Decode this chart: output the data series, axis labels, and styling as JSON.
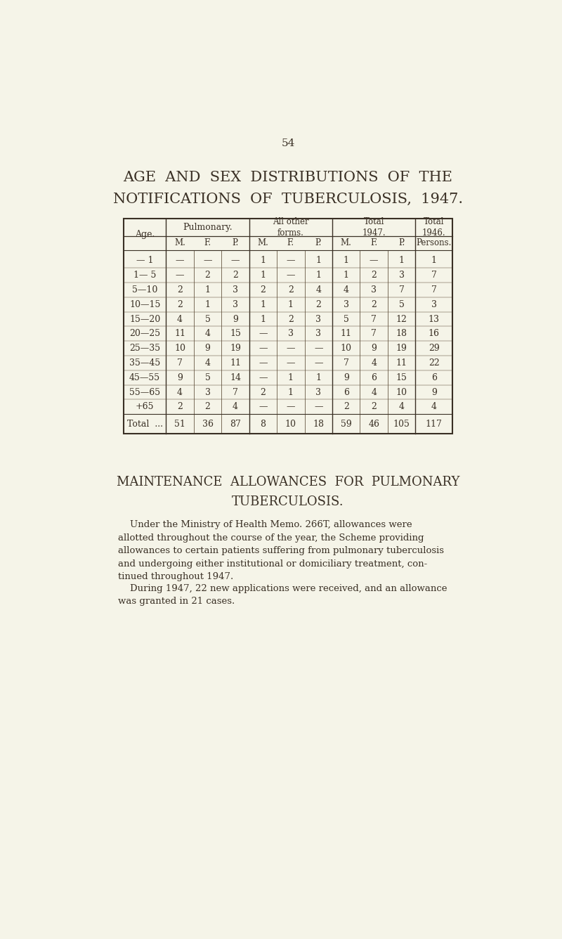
{
  "background_color": "#f5f4e8",
  "page_number": "54",
  "title_line1": "AGE  AND  SEX  DISTRIBUTIONS  OF  THE",
  "title_line2": "NOTIFICATIONS  OF  TUBERCULOSIS,  1947.",
  "table": {
    "age_col_header": "Age.",
    "rows": [
      {
        "age": "— 1",
        "pul_m": "—",
        "pul_f": "—",
        "pul_p": "—",
        "oth_m": "1",
        "oth_f": "—",
        "oth_p": "1",
        "tot47_m": "1",
        "tot47_f": "—",
        "tot47_p": "1",
        "tot46": "1"
      },
      {
        "age": "1— 5",
        "pul_m": "—",
        "pul_f": "2",
        "pul_p": "2",
        "oth_m": "1",
        "oth_f": "—",
        "oth_p": "1",
        "tot47_m": "1",
        "tot47_f": "2",
        "tot47_p": "3",
        "tot46": "7"
      },
      {
        "age": "5—10",
        "pul_m": "2",
        "pul_f": "1",
        "pul_p": "3",
        "oth_m": "2",
        "oth_f": "2",
        "oth_p": "4",
        "tot47_m": "4",
        "tot47_f": "3",
        "tot47_p": "7",
        "tot46": "7"
      },
      {
        "age": "10—15",
        "pul_m": "2",
        "pul_f": "1",
        "pul_p": "3",
        "oth_m": "1",
        "oth_f": "1",
        "oth_p": "2",
        "tot47_m": "3",
        "tot47_f": "2",
        "tot47_p": "5",
        "tot46": "3"
      },
      {
        "age": "15—20",
        "pul_m": "4",
        "pul_f": "5",
        "pul_p": "9",
        "oth_m": "1",
        "oth_f": "2",
        "oth_p": "3",
        "tot47_m": "5",
        "tot47_f": "7",
        "tot47_p": "12",
        "tot46": "13"
      },
      {
        "age": "20—25",
        "pul_m": "11",
        "pul_f": "4",
        "pul_p": "15",
        "oth_m": "—",
        "oth_f": "3",
        "oth_p": "3",
        "tot47_m": "11",
        "tot47_f": "7",
        "tot47_p": "18",
        "tot46": "16"
      },
      {
        "age": "25—35",
        "pul_m": "10",
        "pul_f": "9",
        "pul_p": "19",
        "oth_m": "—",
        "oth_f": "—",
        "oth_p": "—",
        "tot47_m": "10",
        "tot47_f": "9",
        "tot47_p": "19",
        "tot46": "29"
      },
      {
        "age": "35—45",
        "pul_m": "7",
        "pul_f": "4",
        "pul_p": "11",
        "oth_m": "—",
        "oth_f": "—",
        "oth_p": "—",
        "tot47_m": "7",
        "tot47_f": "4",
        "tot47_p": "11",
        "tot46": "22"
      },
      {
        "age": "45—55",
        "pul_m": "9",
        "pul_f": "5",
        "pul_p": "14",
        "oth_m": "—",
        "oth_f": "1",
        "oth_p": "1",
        "tot47_m": "9",
        "tot47_f": "6",
        "tot47_p": "15",
        "tot46": "6"
      },
      {
        "age": "55—65",
        "pul_m": "4",
        "pul_f": "3",
        "pul_p": "7",
        "oth_m": "2",
        "oth_f": "1",
        "oth_p": "3",
        "tot47_m": "6",
        "tot47_f": "4",
        "tot47_p": "10",
        "tot46": "9"
      },
      {
        "age": "+65",
        "pul_m": "2",
        "pul_f": "2",
        "pul_p": "4",
        "oth_m": "—",
        "oth_f": "—",
        "oth_p": "—",
        "tot47_m": "2",
        "tot47_f": "2",
        "tot47_p": "4",
        "tot46": "4"
      }
    ],
    "total_row": {
      "age": "Total  ...",
      "pul_m": "51",
      "pul_f": "36",
      "pul_p": "87",
      "oth_m": "8",
      "oth_f": "10",
      "oth_p": "18",
      "tot47_m": "59",
      "tot47_f": "46",
      "tot47_p": "105",
      "tot46": "117"
    }
  },
  "section2_title_line1": "MAINTENANCE  ALLOWANCES  FOR  PULMONARY",
  "section2_title_line2": "TUBERCULOSIS.",
  "para1_indent": "    Under the Ministry of Health Memo. 266T, allowances were\nallotted throughout the course of the year, the Scheme providing\nallowances to certain patients suffering from pulmonary tuberculosis\nand undergoing either institutional or domiciliary treatment, con-\ntinued throughout 1947.",
  "para2_indent": "    During 1947, 22 new applications were received, and an allowance\nwas granted in 21 cases.",
  "text_color": "#3a3025",
  "table_border_color": "#3a3025",
  "table_line_color": "#5a4a35"
}
